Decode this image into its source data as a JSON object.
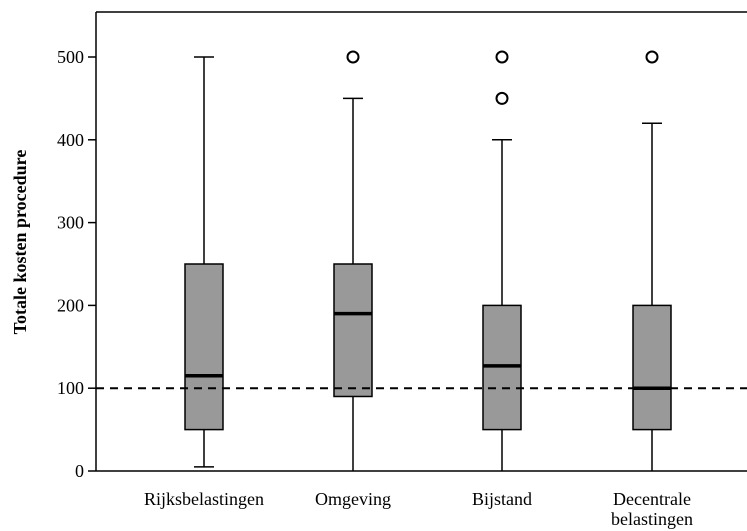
{
  "chart_data": {
    "type": "box",
    "title": "",
    "xlabel": "",
    "ylabel": "Totale kosten procedure",
    "ylim": [
      0,
      550
    ],
    "yticks": [
      0,
      100,
      200,
      300,
      400,
      500
    ],
    "reference_line": {
      "y": 100,
      "style": "dashed"
    },
    "box_color": "#999999",
    "categories": [
      {
        "label_lines": [
          "Rijksbelastingen"
        ],
        "whisker_low": 5,
        "q1": 50,
        "median": 115,
        "q3": 250,
        "whisker_high": 500,
        "outliers": []
      },
      {
        "label_lines": [
          "Omgeving"
        ],
        "whisker_low": 0,
        "q1": 90,
        "median": 190,
        "q3": 250,
        "whisker_high": 450,
        "outliers": [
          500
        ]
      },
      {
        "label_lines": [
          "Bijstand"
        ],
        "whisker_low": 0,
        "q1": 50,
        "median": 127,
        "q3": 200,
        "whisker_high": 400,
        "outliers": [
          450,
          500
        ]
      },
      {
        "label_lines": [
          "Decentrale",
          "belastingen"
        ],
        "whisker_low": 0,
        "q1": 50,
        "median": 100,
        "q3": 200,
        "whisker_high": 420,
        "outliers": [
          500
        ]
      }
    ]
  }
}
